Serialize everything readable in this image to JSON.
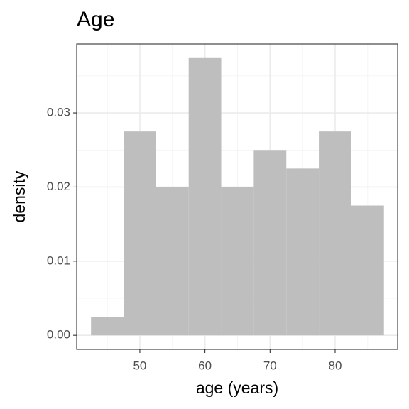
{
  "chart_data": {
    "type": "histogram",
    "title": "Age",
    "xlabel": "age (years)",
    "ylabel": "density",
    "bins": [
      42.5,
      47.5,
      52.5,
      57.5,
      62.5,
      67.5,
      72.5,
      77.5,
      82.5,
      87.5
    ],
    "values": [
      0.0025,
      0.0275,
      0.02,
      0.0375,
      0.02,
      0.025,
      0.0225,
      0.0275,
      0.0175
    ],
    "color": "#bebebe",
    "xlim": [
      40.3,
      89.6
    ],
    "xticks": [
      50,
      60,
      70,
      80
    ],
    "ylim": [
      -0.0019,
      0.0393
    ],
    "yticks": [
      {
        "value": 0,
        "label": "0.00"
      },
      0.01,
      0.02,
      0.03
    ],
    "grid": true
  }
}
